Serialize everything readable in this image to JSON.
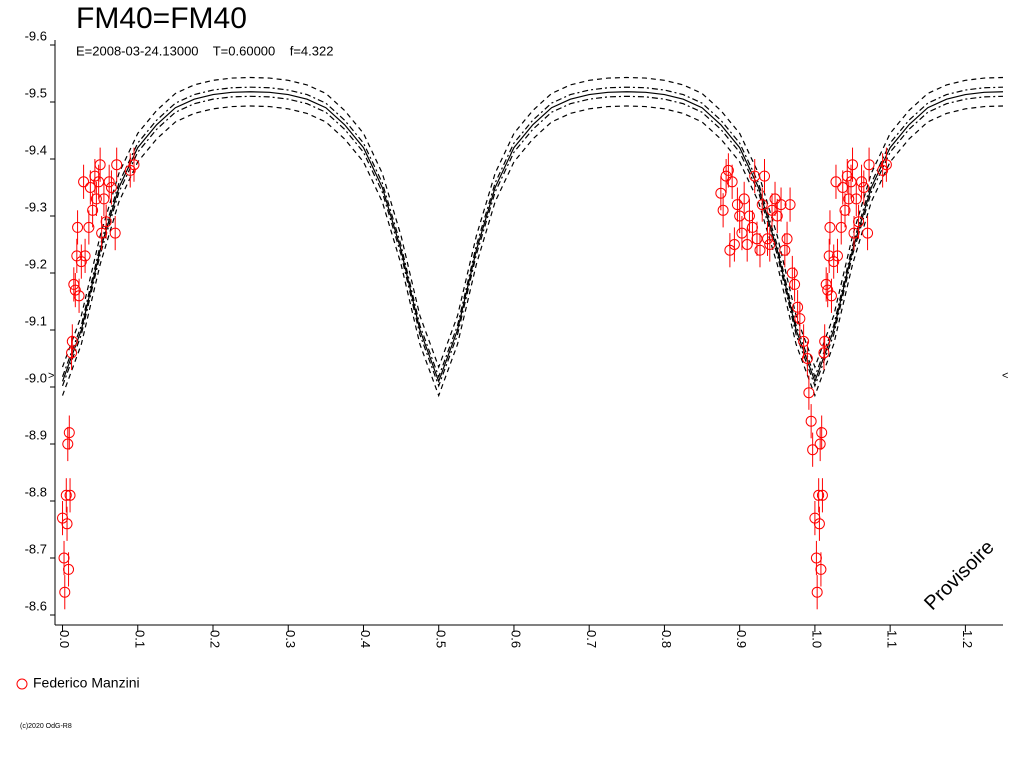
{
  "chart_data": {
    "type": "line",
    "title": "FM40=FM40",
    "subtitle": "E=2008-03-24.13000    T=0.60000    f=4.322",
    "watermark": "Provisoire",
    "footer": "(c)2020 OdG-R8",
    "left_marker": ">",
    "right_marker": "<",
    "xlim": [
      -0.01,
      1.25
    ],
    "ylim": [
      -9.6,
      -8.6
    ],
    "xticks": [
      {
        "value": 0,
        "label": "0.0"
      },
      0.1,
      0.2,
      0.3,
      0.4,
      0.5,
      0.6,
      0.7,
      0.8,
      0.9,
      {
        "value": 1,
        "label": "1.0"
      },
      1.1,
      1.2
    ],
    "yticks": [
      -9.6,
      -9.5,
      -9.4,
      -9.3,
      -9.2,
      -9.1,
      {
        "value": -9,
        "label": "-9.0"
      },
      -8.9,
      -8.8,
      -8.7,
      -8.6
    ],
    "x": [
      0,
      0.025,
      0.05,
      0.075,
      0.1,
      0.125,
      0.15,
      0.175,
      0.2,
      0.225,
      0.25,
      0.275,
      0.3,
      0.325,
      0.35,
      0.375,
      0.4,
      0.425,
      0.45,
      0.475,
      0.5,
      0.525,
      0.55,
      0.575,
      0.6,
      0.625,
      0.65,
      0.675,
      0.7,
      0.725,
      0.75,
      0.775,
      0.8,
      0.825,
      0.85,
      0.875,
      0.9,
      0.925,
      0.95,
      0.975,
      1,
      1.025,
      1.05,
      1.075,
      1.1,
      1.125,
      1.15,
      1.175,
      1.2,
      1.225,
      1.25
    ],
    "series": [
      {
        "color": "#000000",
        "dash": "none",
        "values": [
          -9.01,
          -9.1,
          -9.24,
          -9.35,
          -9.42,
          -9.46,
          -9.49,
          -9.505,
          -9.513,
          -9.517,
          -9.518,
          -9.517,
          -9.513,
          -9.505,
          -9.49,
          -9.46,
          -9.42,
          -9.35,
          -9.24,
          -9.1,
          -9.01,
          -9.1,
          -9.24,
          -9.35,
          -9.42,
          -9.46,
          -9.49,
          -9.505,
          -9.513,
          -9.517,
          -9.518,
          -9.517,
          -9.513,
          -9.505,
          -9.49,
          -9.46,
          -9.42,
          -9.35,
          -9.24,
          -9.1,
          -9.01,
          -9.1,
          -9.24,
          -9.35,
          -9.42,
          -9.46,
          -9.49,
          -9.505,
          -9.513,
          -9.517,
          -9.518
        ]
      },
      {
        "color": "#000000",
        "dash": "6,3,2,3",
        "values": [
          -9.018,
          -9.108,
          -9.248,
          -9.358,
          -9.428,
          -9.468,
          -9.498,
          -9.513,
          -9.521,
          -9.525,
          -9.526,
          -9.525,
          -9.521,
          -9.513,
          -9.498,
          -9.468,
          -9.428,
          -9.358,
          -9.248,
          -9.108,
          -9.018,
          -9.108,
          -9.248,
          -9.358,
          -9.428,
          -9.468,
          -9.498,
          -9.513,
          -9.521,
          -9.525,
          -9.526,
          -9.525,
          -9.521,
          -9.513,
          -9.498,
          -9.468,
          -9.428,
          -9.358,
          -9.248,
          -9.108,
          -9.018,
          -9.108,
          -9.248,
          -9.358,
          -9.428,
          -9.468,
          -9.498,
          -9.513,
          -9.521,
          -9.525,
          -9.526
        ]
      },
      {
        "color": "#000000",
        "dash": "6,3,2,3",
        "values": [
          -9.002,
          -9.092,
          -9.232,
          -9.342,
          -9.412,
          -9.452,
          -9.482,
          -9.497,
          -9.505,
          -9.509,
          -9.51,
          -9.509,
          -9.505,
          -9.497,
          -9.482,
          -9.452,
          -9.412,
          -9.342,
          -9.232,
          -9.092,
          -9.002,
          -9.092,
          -9.232,
          -9.342,
          -9.412,
          -9.452,
          -9.482,
          -9.497,
          -9.505,
          -9.509,
          -9.51,
          -9.509,
          -9.505,
          -9.497,
          -9.482,
          -9.452,
          -9.412,
          -9.342,
          -9.232,
          -9.092,
          -9.002,
          -9.092,
          -9.232,
          -9.342,
          -9.412,
          -9.452,
          -9.482,
          -9.497,
          -9.505,
          -9.509,
          -9.51
        ]
      },
      {
        "color": "#000000",
        "dash": "5,4",
        "values": [
          -9.035,
          -9.125,
          -9.265,
          -9.375,
          -9.445,
          -9.485,
          -9.515,
          -9.53,
          -9.538,
          -9.542,
          -9.543,
          -9.542,
          -9.538,
          -9.53,
          -9.515,
          -9.485,
          -9.445,
          -9.375,
          -9.265,
          -9.125,
          -9.035,
          -9.125,
          -9.265,
          -9.375,
          -9.445,
          -9.485,
          -9.515,
          -9.53,
          -9.538,
          -9.542,
          -9.543,
          -9.542,
          -9.538,
          -9.53,
          -9.515,
          -9.485,
          -9.445,
          -9.375,
          -9.265,
          -9.125,
          -9.035,
          -9.125,
          -9.265,
          -9.375,
          -9.445,
          -9.485,
          -9.515,
          -9.53,
          -9.538,
          -9.542,
          -9.543
        ]
      },
      {
        "color": "#000000",
        "dash": "5,4",
        "values": [
          -8.985,
          -9.075,
          -9.215,
          -9.325,
          -9.395,
          -9.435,
          -9.465,
          -9.48,
          -9.488,
          -9.492,
          -9.493,
          -9.492,
          -9.488,
          -9.48,
          -9.465,
          -9.435,
          -9.395,
          -9.325,
          -9.215,
          -9.075,
          -8.985,
          -9.075,
          -9.215,
          -9.325,
          -9.395,
          -9.435,
          -9.465,
          -9.48,
          -9.488,
          -9.492,
          -9.493,
          -9.492,
          -9.488,
          -9.48,
          -9.465,
          -9.435,
          -9.395,
          -9.325,
          -9.215,
          -9.075,
          -8.985,
          -9.075,
          -9.215,
          -9.325,
          -9.395,
          -9.435,
          -9.465,
          -9.48,
          -9.488,
          -9.492,
          -9.493
        ]
      },
      {
        "name": "Federico Manzini",
        "type": "scatter",
        "color": "#ff0000",
        "error": 0.03,
        "x": [
          0,
          0.002,
          0.003,
          0.005,
          0.006,
          0.007,
          0.008,
          0.009,
          0.01,
          0.012,
          0.013,
          0.015,
          0.017,
          0.019,
          0.02,
          0.022,
          0.025,
          0.028,
          0.03,
          0.035,
          0.037,
          0.04,
          0.043,
          0.045,
          0.048,
          0.05,
          0.052,
          0.055,
          0.058,
          0.062,
          0.065,
          0.07,
          0.072,
          0.09,
          0.095,
          1,
          1.002,
          1.003,
          1.005,
          1.006,
          1.007,
          1.008,
          1.009,
          1.01,
          1.012,
          1.013,
          1.015,
          1.017,
          1.019,
          1.02,
          1.022,
          1.025,
          1.028,
          1.03,
          1.035,
          1.037,
          1.04,
          1.043,
          1.045,
          1.048,
          1.05,
          1.052,
          1.055,
          1.058,
          1.062,
          1.065,
          1.07,
          1.072,
          1.09,
          1.095,
          0.875,
          0.878,
          0.882,
          0.885,
          0.887,
          0.89,
          0.893,
          0.897,
          0.9,
          0.903,
          0.906,
          0.91,
          0.913,
          0.917,
          0.92,
          0.923,
          0.927,
          0.93,
          0.933,
          0.937,
          0.94,
          0.943,
          0.947,
          0.95,
          0.955,
          0.96,
          0.963,
          0.967,
          0.97,
          0.973,
          0.977,
          0.98,
          0.985,
          0.99,
          0.992,
          0.995,
          0.997
        ],
        "values": [
          -8.77,
          -8.7,
          -8.64,
          -8.81,
          -8.76,
          -8.9,
          -8.68,
          -8.92,
          -8.81,
          -9.06,
          -9.08,
          -9.18,
          -9.17,
          -9.23,
          -9.28,
          -9.16,
          -9.22,
          -9.36,
          -9.23,
          -9.28,
          -9.35,
          -9.31,
          -9.37,
          -9.33,
          -9.36,
          -9.39,
          -9.27,
          -9.33,
          -9.29,
          -9.36,
          -9.35,
          -9.27,
          -9.39,
          -9.38,
          -9.39,
          -8.77,
          -8.7,
          -8.64,
          -8.81,
          -8.76,
          -8.9,
          -8.68,
          -8.92,
          -8.81,
          -9.06,
          -9.08,
          -9.18,
          -9.17,
          -9.23,
          -9.28,
          -9.16,
          -9.22,
          -9.36,
          -9.23,
          -9.28,
          -9.35,
          -9.31,
          -9.37,
          -9.33,
          -9.36,
          -9.39,
          -9.27,
          -9.33,
          -9.29,
          -9.36,
          -9.35,
          -9.27,
          -9.39,
          -9.38,
          -9.39,
          -9.34,
          -9.31,
          -9.37,
          -9.38,
          -9.24,
          -9.36,
          -9.25,
          -9.32,
          -9.3,
          -9.27,
          -9.33,
          -9.25,
          -9.3,
          -9.28,
          -9.37,
          -9.26,
          -9.24,
          -9.32,
          -9.37,
          -9.26,
          -9.25,
          -9.31,
          -9.33,
          -9.3,
          -9.32,
          -9.24,
          -9.26,
          -9.32,
          -9.2,
          -9.18,
          -9.14,
          -9.12,
          -9.08,
          -9.05,
          -8.99,
          -8.94,
          -8.89
        ]
      }
    ]
  }
}
